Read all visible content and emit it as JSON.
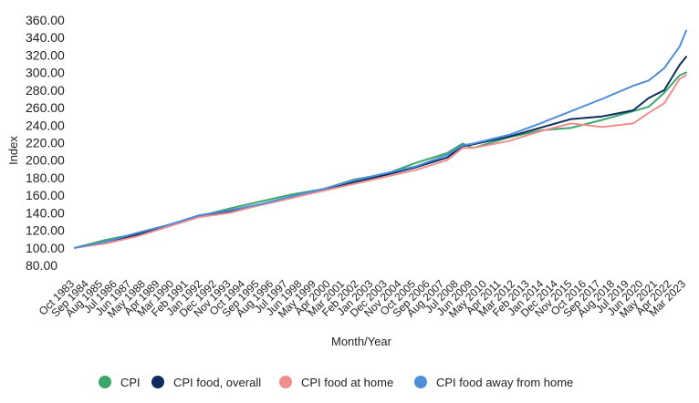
{
  "chart_data": {
    "type": "line",
    "xlabel": "Month/Year",
    "ylabel": "Index",
    "ylim": [
      80,
      360
    ],
    "yticks": [
      "80.00",
      "100.00",
      "120.00",
      "140.00",
      "160.00",
      "180.00",
      "200.00",
      "220.00",
      "240.00",
      "260.00",
      "280.00",
      "300.00",
      "320.00",
      "340.00",
      "360.00"
    ],
    "xticks": [
      "Oct 1983",
      "Sep 1984",
      "Aug 1985",
      "Jul 1986",
      "Jun 1987",
      "May 1988",
      "Apr 1989",
      "Mar 1990",
      "Feb 1991",
      "Jan 1992",
      "Dec 1992",
      "Nov 1993",
      "Oct 1994",
      "Sep 1995",
      "Aug 1996",
      "Jul 1997",
      "Jun 1998",
      "May 1999",
      "Apr 2000",
      "Mar 2001",
      "Feb 2002",
      "Jan 2003",
      "Dec 2003",
      "Nov 2004",
      "Oct 2005",
      "Sep 2006",
      "Aug 2007",
      "Jul 2008",
      "Jun 2009",
      "May 2010",
      "Apr 2011",
      "Mar 2012",
      "Feb 2013",
      "Jan 2014",
      "Dec 2014",
      "Nov 2015",
      "Oct 2016",
      "Sep 2017",
      "Aug 2018",
      "Jul 2019",
      "Jun 2020",
      "May 2021",
      "Apr 2022",
      "Mar 2023"
    ],
    "grid": false,
    "legend_position": "bottom",
    "x": [
      "Oct 1983",
      "Oct 1985",
      "Oct 1987",
      "Oct 1989",
      "Oct 1991",
      "Oct 1993",
      "Oct 1995",
      "Oct 1997",
      "Oct 1999",
      "Oct 2001",
      "Oct 2003",
      "Oct 2005",
      "Oct 2007",
      "Oct 2008",
      "Jun 2009",
      "Oct 2011",
      "Oct 2013",
      "Oct 2015",
      "Oct 2017",
      "Oct 2019",
      "Oct 2020",
      "Oct 2021",
      "Oct 2022",
      "Mar 2023"
    ],
    "series": [
      {
        "name": "CPI",
        "color": "#3aa66c",
        "values": [
          100,
          109,
          116,
          126,
          136,
          145,
          153,
          161,
          167,
          178,
          184,
          197,
          208,
          219,
          214,
          226,
          234,
          237,
          246,
          256,
          261,
          277,
          297,
          300
        ]
      },
      {
        "name": "CPI food, overall",
        "color": "#0c2d5e",
        "values": [
          100,
          106,
          115,
          125,
          137,
          141,
          149,
          157,
          166,
          175,
          183,
          192,
          203,
          216,
          218,
          227,
          237,
          247,
          250,
          257,
          271,
          280,
          309,
          318
        ]
      },
      {
        "name": "CPI food at home",
        "color": "#f08e8e",
        "values": [
          100,
          105,
          113,
          124,
          135,
          140,
          149,
          157,
          165,
          173,
          181,
          189,
          200,
          214,
          214,
          222,
          233,
          242,
          238,
          242,
          254,
          265,
          293,
          297
        ]
      },
      {
        "name": "CPI food away from home",
        "color": "#4f8ed8",
        "values": [
          100,
          107,
          117,
          126,
          137,
          143,
          150,
          159,
          167,
          177,
          185,
          193,
          206,
          217,
          219,
          229,
          242,
          256,
          270,
          285,
          291,
          305,
          330,
          348
        ]
      }
    ]
  }
}
